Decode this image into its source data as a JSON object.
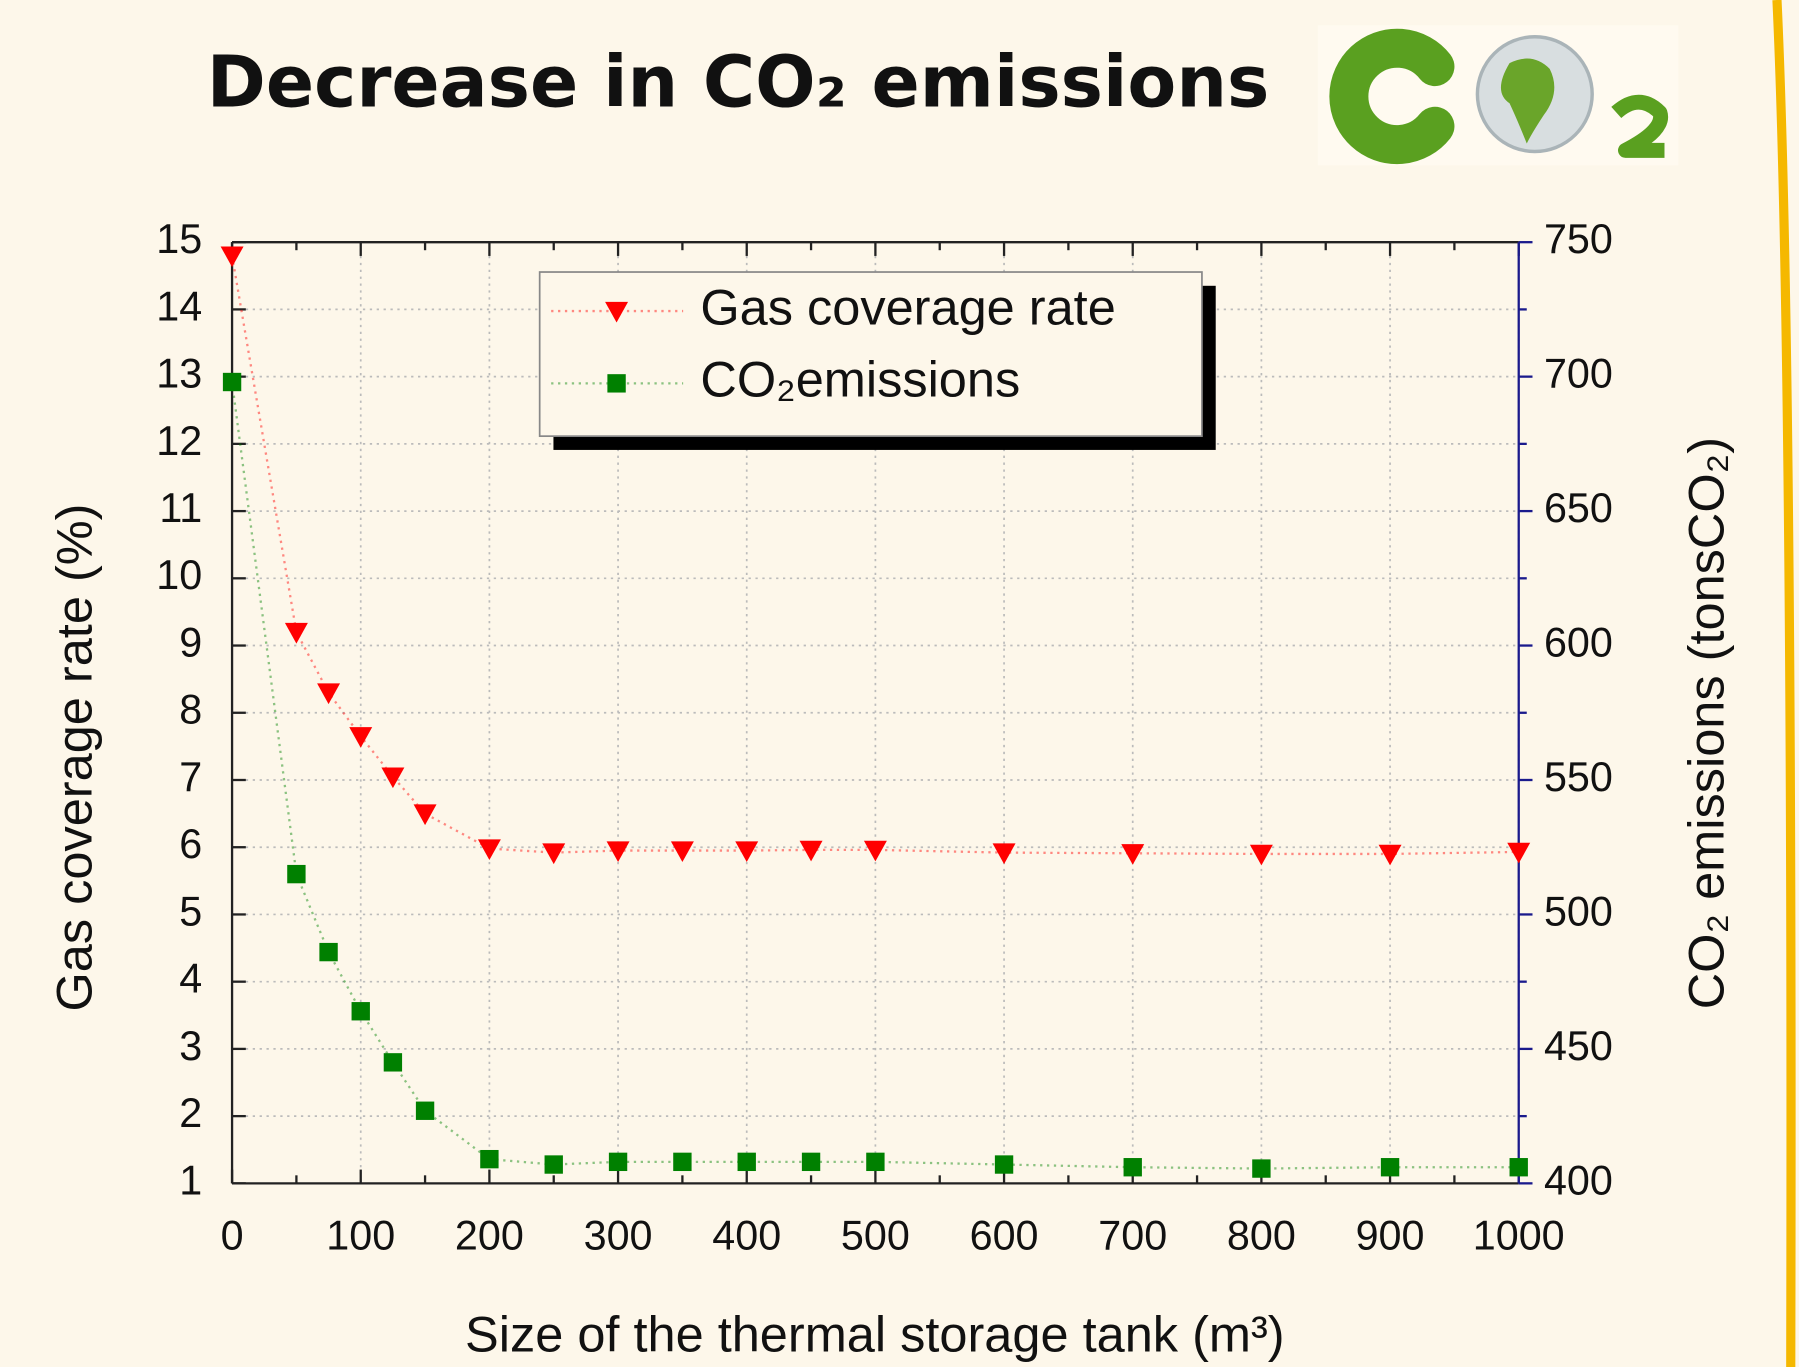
{
  "chart_data": {
    "type": "scatter",
    "title": "Decrease in CO₂ emissions",
    "x_label": "Size of the thermal storage tank (m³)",
    "y_label": "Gas coverage rate (%)",
    "y2_label": "CO₂ emissions (tonsCO₂)",
    "x": [
      0,
      50,
      75,
      100,
      125,
      150,
      200,
      250,
      300,
      350,
      400,
      450,
      500,
      600,
      700,
      800,
      900,
      1000
    ],
    "series": [
      {
        "name": "Gas coverage rate",
        "color": "#ff0000",
        "marker": "triangle-down",
        "values": [
          14.8,
          9.2,
          8.3,
          7.65,
          7.05,
          6.5,
          5.98,
          5.92,
          5.95,
          5.95,
          5.95,
          5.96,
          5.96,
          5.92,
          5.91,
          5.9,
          5.9,
          5.93
        ]
      },
      {
        "name": "CO₂emissions",
        "color": "#008000",
        "marker": "square",
        "axis": "y2",
        "values": [
          698,
          515,
          486,
          464,
          445,
          427,
          409,
          407,
          408,
          408,
          408,
          408,
          408,
          407,
          406,
          405.5,
          406,
          406
        ]
      }
    ],
    "xlim": [
      0,
      1000
    ],
    "xticks": [
      0,
      100,
      200,
      300,
      400,
      500,
      600,
      700,
      800,
      900,
      1000
    ],
    "ylim": [
      1,
      15
    ],
    "yticks": [
      1,
      2,
      3,
      4,
      5,
      6,
      7,
      8,
      9,
      10,
      11,
      12,
      13,
      14,
      15
    ],
    "y2lim": [
      400,
      750
    ],
    "y2ticks": [
      400,
      450,
      500,
      550,
      600,
      650,
      700,
      750
    ],
    "y2_axis_color": "#1a1a8c",
    "grid": true,
    "legend": "upper center"
  }
}
